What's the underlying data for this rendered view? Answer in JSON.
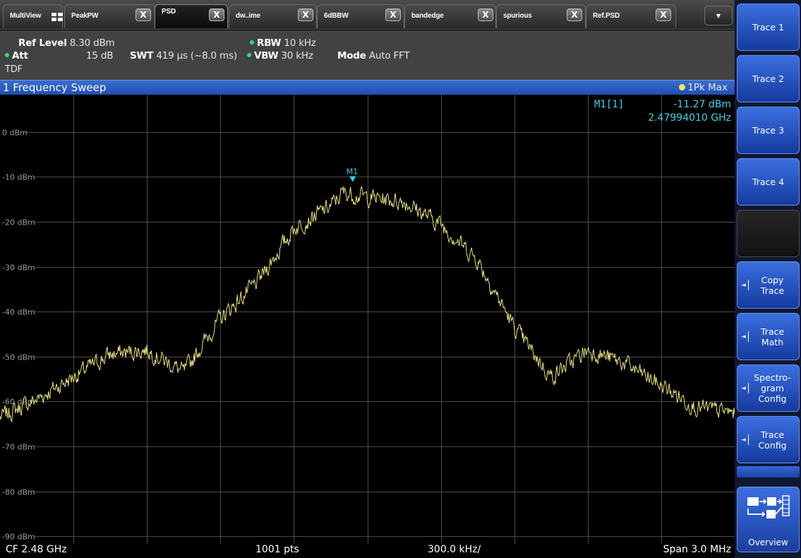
{
  "tabs": [
    {
      "label": "MultiView",
      "icon": "multiview-grid-icon"
    },
    {
      "label": "PeakPW",
      "close": "X"
    },
    {
      "label": "PSD",
      "close": "X",
      "active": true
    },
    {
      "label": "dw..ime",
      "close": "X"
    },
    {
      "label": "6dBBW",
      "close": "X"
    },
    {
      "label": "bandedge",
      "close": "X"
    },
    {
      "label": "spurious",
      "close": "X"
    },
    {
      "label": "Ref.PSD",
      "close": "X"
    }
  ],
  "tab_more": "▼",
  "settings": {
    "ref_level_key": "Ref Level",
    "ref_level_val": "8.30 dBm",
    "att_key": "Att",
    "att_val": "15 dB",
    "swt_key": "SWT",
    "swt_val": "419 µs (~8.0 ms)",
    "rbw_key": "RBW",
    "rbw_val": "10 kHz",
    "vbw_key": "VBW",
    "vbw_val": "30 kHz",
    "mode_key": "Mode",
    "mode_val": "Auto FFT",
    "tdf": "TDF"
  },
  "diagram": {
    "title": "1 Frequency Sweep",
    "trace_info": "1Pk Max",
    "marker_label": "M1[1]",
    "marker_level": "-11.27 dBm",
    "marker_freq": "2.47994010 GHz",
    "marker_tag": "M1"
  },
  "footer": {
    "cf": "CF 2.48 GHz",
    "pts": "1001 pts",
    "div": "300.0 kHz/",
    "span": "Span 3.0 MHz"
  },
  "softkeys": [
    {
      "label": "Trace 1",
      "arrow": false
    },
    {
      "label": "Trace 2",
      "arrow": false
    },
    {
      "label": "Trace 3",
      "arrow": false
    },
    {
      "label": "Trace 4",
      "arrow": false
    },
    {
      "label": "",
      "arrow": false,
      "empty": true
    },
    {
      "label": "Copy\nTrace",
      "arrow": true
    },
    {
      "label": "Trace\nMath",
      "arrow": true
    },
    {
      "label": "Spectro-\ngram\nConfig",
      "arrow": true
    },
    {
      "label": "Trace\nConfig",
      "arrow": true
    }
  ],
  "overview_label": "Overview",
  "colors": {
    "trace": "#e8e07a",
    "marker": "#33d6e6",
    "grid": "#4a4a4a",
    "title_bar": "#2a5cc4",
    "softkey": "#2a5cd0"
  },
  "chart_data": {
    "type": "line",
    "x_unit": "GHz",
    "x_range": [
      2.4785,
      2.4815
    ],
    "center_frequency_label": "CF 2.48 GHz",
    "points_label": "1001 pts",
    "per_division_label": "300.0 kHz/",
    "span_label": "Span 3.0 MHz",
    "ylim": [
      -91.7,
      8.3
    ],
    "y_unit": "dBm",
    "y_tick_labels": [
      "0 dBm",
      "-10 dBm",
      "-20 dBm",
      "-30 dBm",
      "-40 dBm",
      "-50 dBm",
      "-60 dBm",
      "-70 dBm",
      "-80 dBm",
      "-90 dBm"
    ],
    "y_ticks": [
      0,
      -10,
      -20,
      -30,
      -40,
      -50,
      -60,
      -70,
      -80,
      -90
    ],
    "grid": true,
    "series": [
      {
        "name": "1Pk Max",
        "x": [
          2.4785,
          2.47865,
          2.4788,
          2.47895,
          2.4791,
          2.47925,
          2.4794,
          2.47955,
          2.4797,
          2.47985,
          2.4799,
          2.48,
          2.48015,
          2.4803,
          2.48045,
          2.4806,
          2.48075,
          2.4809,
          2.48105,
          2.4812,
          2.48135,
          2.4815
        ],
        "y": [
          -63.5,
          -59.5,
          -54.5,
          -49.5,
          -48.5,
          -53.5,
          -41.5,
          -33.5,
          -21.5,
          -16.5,
          -13.5,
          -14.5,
          -15.5,
          -20.5,
          -28.5,
          -43.5,
          -54.5,
          -48.5,
          -51.5,
          -56.5,
          -61.5,
          -62.5
        ]
      }
    ],
    "marker": {
      "name": "M1",
      "x": 2.4799401,
      "y": -11.27
    }
  }
}
